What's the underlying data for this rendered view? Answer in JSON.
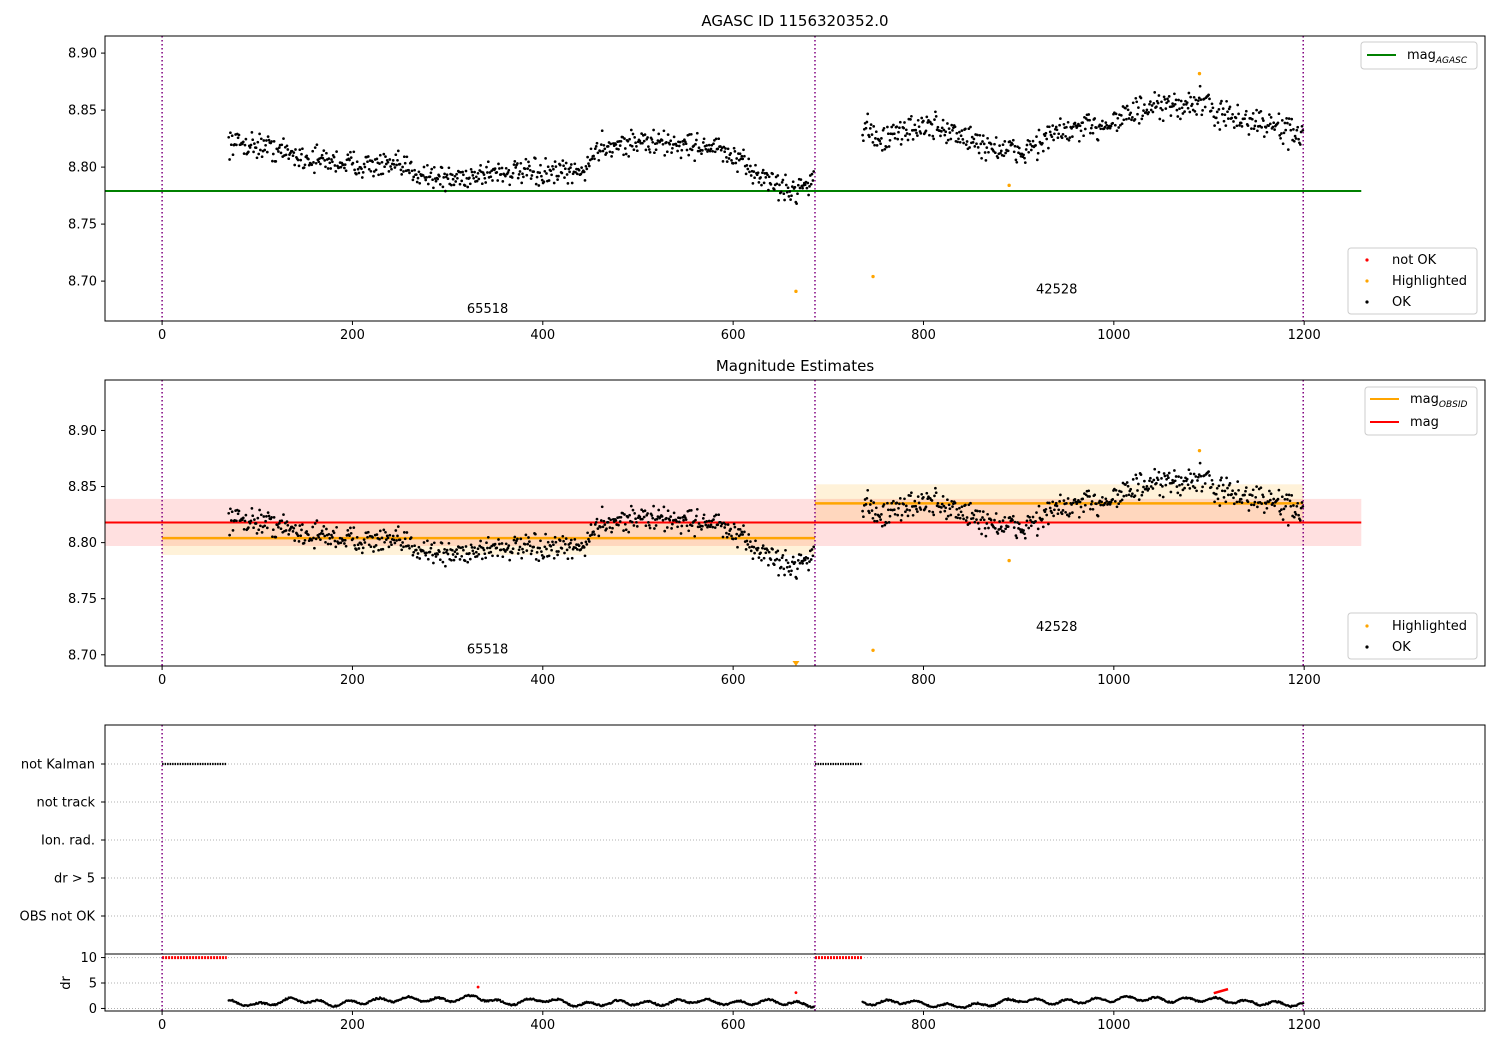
{
  "figure_title": "AGASC ID 1156320352.0",
  "colors": {
    "ok": "#000000",
    "highlighted": "#ffa500",
    "not_ok": "#ff0000",
    "agasc_line": "#008000",
    "obsid_line": "#ffa500",
    "mag_line": "#ff0000",
    "obs_boundary": "#800080"
  },
  "chart_data": [
    {
      "type": "scatter",
      "title": "AGASC ID 1156320352.0",
      "xlim": [
        -60,
        1390
      ],
      "ylim": [
        8.665,
        8.915
      ],
      "xticks": [
        0,
        200,
        400,
        600,
        800,
        1000,
        1200
      ],
      "yticks": [
        8.7,
        8.75,
        8.8,
        8.85,
        8.9
      ],
      "obs_boundaries": [
        0,
        686,
        1199
      ],
      "obs_labels": [
        {
          "text": "65518",
          "x": 342,
          "y": 8.672
        },
        {
          "text": "42528",
          "x": 940,
          "y": 8.689
        }
      ],
      "mag_agasc": {
        "value": 8.779,
        "x": [
          -60,
          1260
        ]
      },
      "series": [
        {
          "name": "OK",
          "segments": [
            {
              "x_start": 70,
              "x_end": 685,
              "y": [
                [
                  70,
                  8.822
                ],
                [
                  110,
                  8.818
                ],
                [
                  150,
                  8.808
                ],
                [
                  200,
                  8.803
                ],
                [
                  250,
                  8.8
                ],
                [
                  300,
                  8.789
                ],
                [
                  350,
                  8.796
                ],
                [
                  400,
                  8.794
                ],
                [
                  440,
                  8.795
                ],
                [
                  460,
                  8.818
                ],
                [
                  500,
                  8.822
                ],
                [
                  540,
                  8.82
                ],
                [
                  580,
                  8.818
                ],
                [
                  620,
                  8.797
                ],
                [
                  660,
                  8.778
                ],
                [
                  685,
                  8.79
                ]
              ],
              "spread": 0.0075
            },
            {
              "x_start": 736,
              "x_end": 1199,
              "y": [
                [
                  736,
                  8.835
                ],
                [
                  760,
                  8.823
                ],
                [
                  790,
                  8.836
                ],
                [
                  820,
                  8.834
                ],
                [
                  860,
                  8.82
                ],
                [
                  900,
                  8.812
                ],
                [
                  940,
                  8.83
                ],
                [
                  980,
                  8.835
                ],
                [
                  1020,
                  8.848
                ],
                [
                  1060,
                  8.853
                ],
                [
                  1090,
                  8.857
                ],
                [
                  1120,
                  8.843
                ],
                [
                  1160,
                  8.838
                ],
                [
                  1199,
                  8.827
                ]
              ],
              "spread": 0.0085
            }
          ]
        },
        {
          "name": "Highlighted",
          "points": [
            [
              666,
              8.691
            ],
            [
              747,
              8.704
            ],
            [
              890,
              8.784
            ],
            [
              1090,
              8.882
            ]
          ]
        },
        {
          "name": "not OK",
          "points": []
        }
      ],
      "legends": [
        {
          "position": "upper-right",
          "entries": [
            {
              "label": "mag",
              "sub": "AGASC",
              "kind": "line",
              "color": "#008000"
            }
          ]
        },
        {
          "position": "lower-right",
          "entries": [
            {
              "label": "not OK",
              "kind": "dot",
              "color": "#ff0000"
            },
            {
              "label": "Highlighted",
              "kind": "dot",
              "color": "#ffa500"
            },
            {
              "label": "OK",
              "kind": "dot",
              "color": "#000000"
            }
          ]
        }
      ]
    },
    {
      "type": "scatter",
      "title": "Magnitude Estimates",
      "xlim": [
        -60,
        1390
      ],
      "ylim": [
        8.69,
        8.945
      ],
      "xticks": [
        0,
        200,
        400,
        600,
        800,
        1000,
        1200
      ],
      "yticks": [
        8.7,
        8.75,
        8.8,
        8.85,
        8.9
      ],
      "obs_boundaries": [
        0,
        686,
        1199
      ],
      "obs_labels": [
        {
          "text": "65518",
          "x": 342,
          "y": 8.701
        },
        {
          "text": "42528",
          "x": 940,
          "y": 8.721
        }
      ],
      "mag": {
        "value": 8.818,
        "band": [
          8.797,
          8.839
        ],
        "x": [
          -60,
          1260
        ]
      },
      "mag_obsid": [
        {
          "x": [
            0,
            686
          ],
          "value": 8.804,
          "band": [
            8.789,
            8.819
          ]
        },
        {
          "x": [
            686,
            1199
          ],
          "value": 8.835,
          "band": [
            8.818,
            8.852
          ]
        }
      ],
      "series": [
        {
          "name": "OK",
          "segments": [
            {
              "x_start": 70,
              "x_end": 685,
              "y": [
                [
                  70,
                  8.822
                ],
                [
                  110,
                  8.818
                ],
                [
                  150,
                  8.808
                ],
                [
                  200,
                  8.803
                ],
                [
                  250,
                  8.8
                ],
                [
                  300,
                  8.789
                ],
                [
                  350,
                  8.796
                ],
                [
                  400,
                  8.794
                ],
                [
                  440,
                  8.795
                ],
                [
                  460,
                  8.818
                ],
                [
                  500,
                  8.822
                ],
                [
                  540,
                  8.82
                ],
                [
                  580,
                  8.818
                ],
                [
                  620,
                  8.797
                ],
                [
                  660,
                  8.778
                ],
                [
                  685,
                  8.79
                ]
              ],
              "spread": 0.0075
            },
            {
              "x_start": 736,
              "x_end": 1199,
              "y": [
                [
                  736,
                  8.835
                ],
                [
                  760,
                  8.823
                ],
                [
                  790,
                  8.836
                ],
                [
                  820,
                  8.834
                ],
                [
                  860,
                  8.82
                ],
                [
                  900,
                  8.812
                ],
                [
                  940,
                  8.83
                ],
                [
                  980,
                  8.835
                ],
                [
                  1020,
                  8.848
                ],
                [
                  1060,
                  8.853
                ],
                [
                  1090,
                  8.857
                ],
                [
                  1120,
                  8.843
                ],
                [
                  1160,
                  8.838
                ],
                [
                  1199,
                  8.827
                ]
              ],
              "spread": 0.0085
            }
          ]
        },
        {
          "name": "Highlighted",
          "points": [
            [
              747,
              8.704
            ],
            [
              890,
              8.784
            ],
            [
              1090,
              8.882
            ]
          ],
          "clipped_markers": [
            [
              666,
              8.69
            ]
          ]
        }
      ],
      "legends": [
        {
          "position": "upper-right",
          "entries": [
            {
              "label": "mag",
              "sub": "OBSID",
              "kind": "line",
              "color": "#ffa500"
            },
            {
              "label": "mag",
              "kind": "line",
              "color": "#ff0000"
            }
          ]
        },
        {
          "position": "lower-right",
          "entries": [
            {
              "label": "Highlighted",
              "kind": "dot",
              "color": "#ffa500"
            },
            {
              "label": "OK",
              "kind": "dot",
              "color": "#000000"
            }
          ]
        }
      ]
    },
    {
      "type": "scatter",
      "title": "",
      "xlim": [
        -60,
        1390
      ],
      "xticks": [
        0,
        200,
        400,
        600,
        800,
        1000,
        1200
      ],
      "obs_boundaries": [
        0,
        686,
        1199
      ],
      "flag_rows": [
        "not Kalman",
        "not track",
        "Ion. rad.",
        "dr > 5",
        "OBS not OK"
      ],
      "flag_segments": [
        {
          "row": "not Kalman",
          "x": [
            0,
            68
          ]
        },
        {
          "row": "not Kalman",
          "x": [
            686,
            736
          ]
        }
      ],
      "dr_panel": {
        "ylabel": "dr",
        "ylim": [
          -0.5,
          10.7
        ],
        "yticks": [
          0,
          5,
          10
        ],
        "clipped_red": [
          {
            "x": [
              0,
              68
            ],
            "y": 10
          },
          {
            "x": [
              686,
              736
            ],
            "y": 10
          }
        ],
        "segments": [
          {
            "x_start": 70,
            "x_end": 685,
            "y": [
              [
                70,
                1.3
              ],
              [
                100,
                0.6
              ],
              [
                140,
                1.8
              ],
              [
                180,
                0.8
              ],
              [
                220,
                1.5
              ],
              [
                260,
                1.9
              ],
              [
                300,
                1.6
              ],
              [
                330,
                2.3
              ],
              [
                360,
                0.9
              ],
              [
                400,
                1.8
              ],
              [
                440,
                0.7
              ],
              [
                480,
                1.2
              ],
              [
                520,
                0.9
              ],
              [
                560,
                1.6
              ],
              [
                600,
                1.0
              ],
              [
                640,
                1.4
              ],
              [
                685,
                0.6
              ]
            ],
            "amp": 0.7
          },
          {
            "x_start": 736,
            "x_end": 1199,
            "y": [
              [
                736,
                1.0
              ],
              [
                780,
                1.4
              ],
              [
                820,
                0.5
              ],
              [
                860,
                0.6
              ],
              [
                900,
                1.7
              ],
              [
                940,
                1.2
              ],
              [
                980,
                1.6
              ],
              [
                1020,
                2.0
              ],
              [
                1060,
                1.6
              ],
              [
                1100,
                1.8
              ],
              [
                1140,
                1.2
              ],
              [
                1199,
                0.7
              ]
            ],
            "amp": 0.7
          }
        ],
        "red_points": [
          [
            332,
            4.2
          ],
          [
            666,
            3.1
          ]
        ],
        "red_segments": [
          {
            "x": [
              1105,
              1120
            ],
            "y": [
              3.0,
              3.8
            ]
          }
        ]
      }
    }
  ]
}
